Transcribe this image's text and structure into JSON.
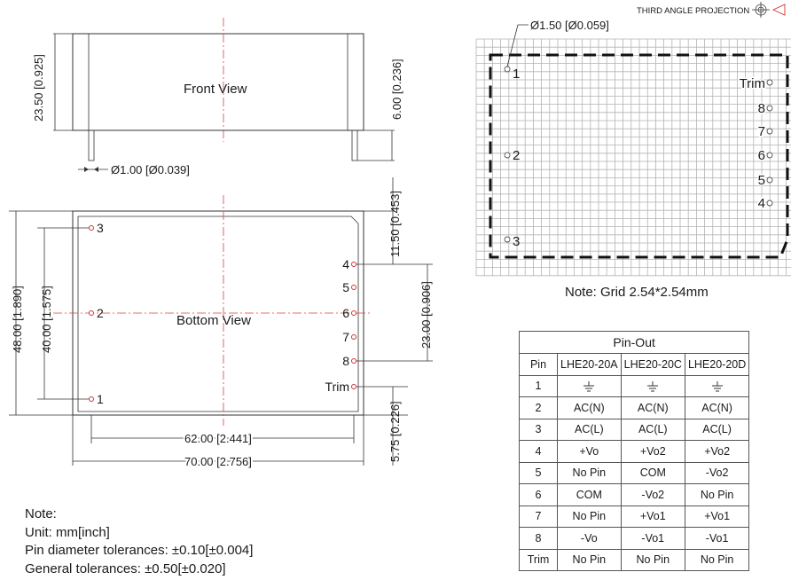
{
  "projection_label": "THIRD ANGLE PROJECTION",
  "front_view": {
    "title": "Front View",
    "height_dim": "23.50 [0.925]",
    "pin_length_dim": "6.00 [0.236]",
    "pin_diameter_dim": "Ø1.00 [Ø0.039]"
  },
  "bottom_view": {
    "title": "Bottom View",
    "height_dim": "48.00 [1.890]",
    "pin_span_dim": "40.00 [1.575]",
    "inner_width_dim": "62.00 [2.441]",
    "outer_width_dim": "70.00 [2.756]",
    "top_offset_dim": "11.50 [0.453]",
    "pin_group_dim": "23.00 [0.906]",
    "bottom_offset_dim": "5.75 [0.226]",
    "left_pins": [
      "3",
      "2",
      "1"
    ],
    "right_pins": [
      "4",
      "5",
      "6",
      "7",
      "8",
      "Trim"
    ]
  },
  "grid_view": {
    "hole_dim": "Ø1.50 [Ø0.059]",
    "left_pins": [
      "1",
      "2",
      "3"
    ],
    "right_pins": [
      "Trim",
      "8",
      "7",
      "6",
      "5",
      "4"
    ],
    "note": "Note: Grid 2.54*2.54mm"
  },
  "pinout": {
    "title": "Pin-Out",
    "headers": [
      "Pin",
      "LHE20-20A",
      "LHE20-20C",
      "LHE20-20D"
    ],
    "rows": [
      [
        "1",
        "⏚",
        "⏚",
        "⏚"
      ],
      [
        "2",
        "AC(N)",
        "AC(N)",
        "AC(N)"
      ],
      [
        "3",
        "AC(L)",
        "AC(L)",
        "AC(L)"
      ],
      [
        "4",
        "+Vo",
        "+Vo2",
        "+Vo2"
      ],
      [
        "5",
        "No Pin",
        "COM",
        "-Vo2"
      ],
      [
        "6",
        "COM",
        "-Vo2",
        "No Pin"
      ],
      [
        "7",
        "No Pin",
        "+Vo1",
        "+Vo1"
      ],
      [
        "8",
        "-Vo",
        "-Vo1",
        "-Vo1"
      ],
      [
        "Trim",
        "No Pin",
        "No Pin",
        "No Pin"
      ]
    ]
  },
  "notes": {
    "heading": "Note:",
    "unit": "Unit: mm[inch]",
    "pin_tolerance": "Pin diameter tolerances: ±0.10[±0.004]",
    "general_tolerance": "General tolerances: ±0.50[±0.020]"
  }
}
